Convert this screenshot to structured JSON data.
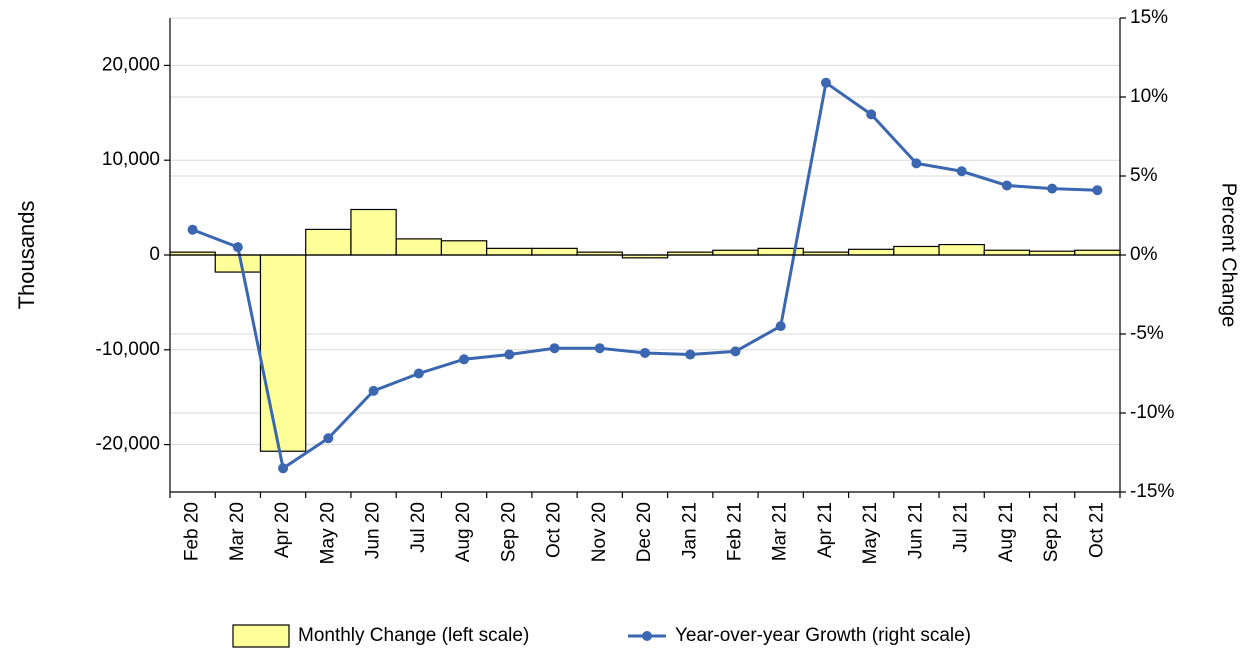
{
  "chart_data": {
    "type": "bar_line",
    "categories": [
      "Feb 20",
      "Mar 20",
      "Apr 20",
      "May 20",
      "Jun 20",
      "Jul 20",
      "Aug 20",
      "Sep 20",
      "Oct 20",
      "Nov 20",
      "Dec 20",
      "Jan 21",
      "Feb 21",
      "Mar 21",
      "Apr 21",
      "May 21",
      "Jun 21",
      "Jul 21",
      "Aug 21",
      "Sep 21",
      "Oct 21"
    ],
    "y_label": "Thousands",
    "y2_label": "Percent Change",
    "series": [
      {
        "name": "Monthly Change (left scale)",
        "type": "bar",
        "color": "#ffff99",
        "values": [
          300,
          -1800,
          -20700,
          2700,
          4800,
          1700,
          1500,
          700,
          700,
          300,
          -300,
          300,
          500,
          700,
          300,
          600,
          900,
          1100,
          500,
          400,
          500
        ]
      },
      {
        "name": "Year-over-year Growth (right scale)",
        "type": "line",
        "axis": "y2",
        "color": "#3a67b0",
        "values": [
          1.6,
          0.5,
          -13.5,
          -11.6,
          -8.6,
          -7.5,
          -6.6,
          -6.3,
          -5.9,
          -5.9,
          -6.2,
          -6.3,
          -6.1,
          -4.5,
          10.9,
          8.9,
          5.8,
          5.3,
          4.4,
          4.2,
          4.1
        ]
      }
    ],
    "ylim": [
      -25000,
      25000
    ],
    "yticks": [
      {
        "value": -20000,
        "label": "-20,000"
      },
      {
        "value": -10000,
        "label": "-10,000"
      },
      0,
      {
        "value": 10000,
        "label": "10,000"
      },
      {
        "value": 20000,
        "label": "20,000"
      }
    ],
    "y2lim": [
      -15,
      15
    ],
    "y2ticks": [
      {
        "value": -15,
        "label": "-15%"
      },
      {
        "value": -10,
        "label": "-10%"
      },
      {
        "value": -5,
        "label": "-5%"
      },
      {
        "value": 0,
        "label": "0%"
      },
      {
        "value": 5,
        "label": "5%"
      },
      {
        "value": 10,
        "label": "10%"
      },
      {
        "value": 15,
        "label": "15%"
      }
    ],
    "grid": true
  }
}
